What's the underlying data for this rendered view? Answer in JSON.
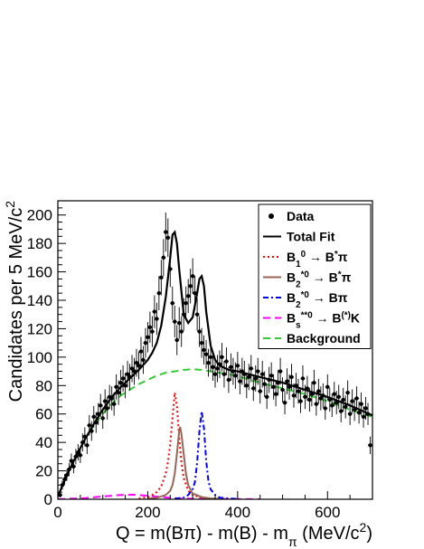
{
  "chart_data": {
    "type": "scatter",
    "xlabel_parts": [
      "Q = m(B",
      "π",
      ") - m(B) - m",
      "π",
      " (MeV/c",
      "2",
      ")"
    ],
    "ylabel_parts": [
      "Candidates per 5 MeV/c",
      "2"
    ],
    "xlim": [
      0,
      700
    ],
    "ylim": [
      0,
      210
    ],
    "x_ticks": [
      0,
      200,
      400,
      600
    ],
    "y_ticks": [
      0,
      20,
      40,
      60,
      80,
      100,
      120,
      140,
      160,
      180,
      200
    ],
    "grid": false,
    "legend_position": "top-right",
    "legend": [
      {
        "key": "data",
        "style": "marker",
        "color": "#000000",
        "parts": [
          "Data"
        ]
      },
      {
        "key": "total",
        "style": "solid",
        "color": "#000000",
        "parts": [
          "Total Fit"
        ]
      },
      {
        "key": "b1",
        "style": "dotted",
        "color": "#ff0000",
        "parts": [
          "B",
          "1",
          "0",
          " → B",
          "*",
          "π"
        ]
      },
      {
        "key": "b2star",
        "style": "solid",
        "color": "#996655",
        "parts": [
          "B",
          "2",
          "*0",
          " → B",
          "*",
          "π"
        ]
      },
      {
        "key": "b2",
        "style": "dashdot",
        "color": "#0000ff",
        "parts": [
          "B",
          "2",
          "*0",
          " → Bπ"
        ]
      },
      {
        "key": "bs",
        "style": "dashed",
        "color": "#ff00ff",
        "parts": [
          "B",
          "s",
          "**0",
          " → B",
          "(*)",
          "K"
        ]
      },
      {
        "key": "bkg",
        "style": "dashed",
        "color": "#33cc33",
        "parts": [
          "Background"
        ]
      }
    ],
    "data_points": {
      "x": [
        5,
        10,
        15,
        20,
        25,
        30,
        35,
        40,
        45,
        50,
        55,
        60,
        65,
        70,
        75,
        80,
        85,
        90,
        95,
        100,
        105,
        110,
        115,
        120,
        125,
        130,
        135,
        140,
        145,
        150,
        155,
        160,
        165,
        170,
        175,
        180,
        185,
        190,
        195,
        200,
        205,
        210,
        215,
        220,
        225,
        230,
        235,
        240,
        245,
        250,
        255,
        260,
        265,
        270,
        275,
        280,
        285,
        290,
        295,
        300,
        305,
        310,
        315,
        320,
        325,
        330,
        335,
        340,
        345,
        350,
        355,
        360,
        365,
        370,
        375,
        380,
        385,
        390,
        395,
        400,
        405,
        410,
        415,
        420,
        425,
        430,
        435,
        440,
        445,
        450,
        455,
        460,
        465,
        470,
        475,
        480,
        485,
        490,
        495,
        500,
        505,
        510,
        515,
        520,
        525,
        530,
        535,
        540,
        545,
        550,
        555,
        560,
        565,
        570,
        575,
        580,
        585,
        590,
        595,
        600,
        605,
        610,
        615,
        620,
        625,
        630,
        635,
        640,
        645,
        650,
        655,
        660,
        665,
        670,
        675,
        680,
        685,
        690,
        695
      ],
      "y": [
        3,
        10,
        14,
        17,
        21,
        27,
        23,
        30,
        33,
        31,
        40,
        44,
        38,
        52,
        48,
        58,
        54,
        60,
        66,
        57,
        69,
        64,
        72,
        71,
        67,
        79,
        75,
        82,
        85,
        80,
        88,
        86,
        92,
        90,
        96,
        94,
        104,
        98,
        110,
        114,
        121,
        118,
        132,
        127,
        145,
        156,
        170,
        188,
        184,
        162,
        138,
        125,
        112,
        124,
        118,
        130,
        138,
        143,
        150,
        157,
        145,
        130,
        118,
        110,
        105,
        102,
        96,
        100,
        93,
        88,
        92,
        95,
        100,
        88,
        97,
        84,
        93,
        90,
        87,
        94,
        83,
        90,
        88,
        80,
        86,
        92,
        78,
        85,
        90,
        76,
        88,
        81,
        72,
        84,
        87,
        79,
        74,
        82,
        90,
        77,
        68,
        83,
        79,
        86,
        73,
        80,
        76,
        69,
        85,
        72,
        78,
        70,
        74,
        82,
        67,
        76,
        71,
        73,
        64,
        79,
        70,
        66,
        74,
        68,
        72,
        62,
        70,
        65,
        75,
        60,
        69,
        63,
        71,
        61,
        67,
        58,
        64,
        60,
        38
      ],
      "err_up": 10
    },
    "curves": {
      "total": {
        "x": [
          0,
          20,
          40,
          60,
          80,
          100,
          120,
          140,
          160,
          180,
          200,
          210,
          220,
          230,
          240,
          250,
          255,
          260,
          265,
          270,
          280,
          290,
          300,
          310,
          315,
          320,
          325,
          330,
          340,
          350,
          360,
          380,
          400,
          450,
          500,
          550,
          600,
          650,
          700
        ],
        "y": [
          2,
          17,
          30,
          42,
          53,
          63,
          72,
          79,
          85,
          91,
          98,
          103,
          110,
          122,
          142,
          170,
          186,
          188,
          180,
          162,
          130,
          124,
          128,
          145,
          155,
          157,
          150,
          132,
          108,
          98,
          94,
          91,
          90,
          86,
          82,
          77,
          72,
          66,
          59
        ]
      },
      "b1": {
        "x": [
          180,
          200,
          210,
          220,
          230,
          240,
          245,
          250,
          255,
          260,
          265,
          270,
          275,
          280,
          290,
          300,
          320,
          340
        ],
        "y": [
          0.5,
          1.5,
          3,
          5,
          9,
          18,
          26,
          39,
          57,
          75,
          66,
          43,
          26,
          15,
          6,
          3,
          1,
          0.5
        ]
      },
      "b2star": {
        "x": [
          200,
          220,
          240,
          250,
          255,
          260,
          265,
          270,
          272,
          275,
          280,
          285,
          290,
          300,
          320,
          340,
          360
        ],
        "y": [
          0.3,
          1,
          3,
          6,
          10,
          18,
          32,
          48,
          51,
          46,
          32,
          18,
          10,
          4,
          1.5,
          0.6,
          0.3
        ]
      },
      "b2": {
        "x": [
          260,
          280,
          290,
          300,
          305,
          310,
          315,
          320,
          325,
          330,
          335,
          340,
          350,
          360,
          380,
          400
        ],
        "y": [
          0.4,
          1.2,
          3,
          7,
          12,
          26,
          48,
          62,
          50,
          27,
          13,
          7,
          3,
          1.2,
          0.5,
          0.3
        ]
      },
      "bs": {
        "x": [
          0,
          60,
          100,
          140,
          170,
          200,
          230,
          250,
          270,
          300,
          350,
          400,
          450
        ],
        "y": [
          0,
          0.8,
          2,
          3,
          3.2,
          2.5,
          1.6,
          1.0,
          0.6,
          0.4,
          0.2,
          0.1,
          0
        ]
      },
      "bkg": {
        "x": [
          0,
          20,
          40,
          60,
          80,
          100,
          120,
          140,
          160,
          180,
          200,
          220,
          240,
          260,
          280,
          300,
          320,
          340,
          360,
          380,
          400,
          450,
          500,
          550,
          600,
          650,
          700
        ],
        "y": [
          2,
          17,
          30,
          42,
          52,
          60,
          67,
          73,
          77,
          81,
          84,
          87,
          89,
          90,
          91,
          91.5,
          91,
          90,
          89,
          88,
          86.5,
          82,
          78,
          74,
          69,
          63,
          58
        ]
      }
    }
  }
}
